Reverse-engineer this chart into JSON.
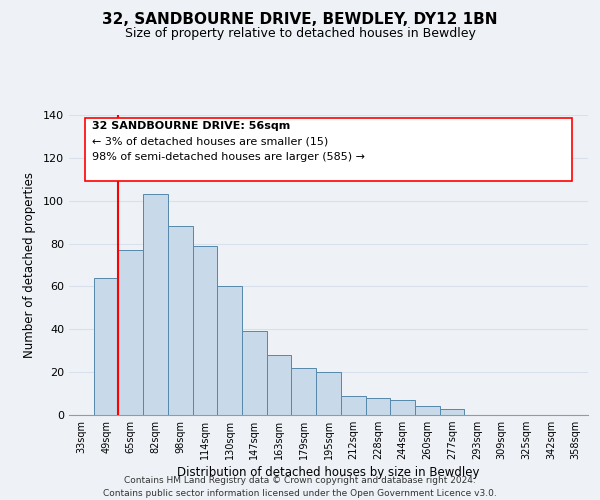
{
  "title": "32, SANDBOURNE DRIVE, BEWDLEY, DY12 1BN",
  "subtitle": "Size of property relative to detached houses in Bewdley",
  "xlabel": "Distribution of detached houses by size in Bewdley",
  "ylabel": "Number of detached properties",
  "bar_labels": [
    "33sqm",
    "49sqm",
    "65sqm",
    "82sqm",
    "98sqm",
    "114sqm",
    "130sqm",
    "147sqm",
    "163sqm",
    "179sqm",
    "195sqm",
    "212sqm",
    "228sqm",
    "244sqm",
    "260sqm",
    "277sqm",
    "293sqm",
    "309sqm",
    "325sqm",
    "342sqm",
    "358sqm"
  ],
  "bar_values": [
    0,
    64,
    77,
    103,
    88,
    79,
    60,
    39,
    28,
    22,
    20,
    9,
    8,
    7,
    4,
    3,
    0,
    0,
    0,
    0,
    0
  ],
  "bar_color": "#c8daea",
  "bar_edge_color": "#5588aa",
  "redline_x": 1.5,
  "ylim": [
    0,
    140
  ],
  "yticks": [
    0,
    20,
    40,
    60,
    80,
    100,
    120,
    140
  ],
  "annotation_title": "32 SANDBOURNE DRIVE: 56sqm",
  "annotation_line1": "← 3% of detached houses are smaller (15)",
  "annotation_line2": "98% of semi-detached houses are larger (585) →",
  "footer1": "Contains HM Land Registry data © Crown copyright and database right 2024.",
  "footer2": "Contains public sector information licensed under the Open Government Licence v3.0.",
  "background_color": "#eef2f7",
  "grid_color": "#d8e0ec"
}
